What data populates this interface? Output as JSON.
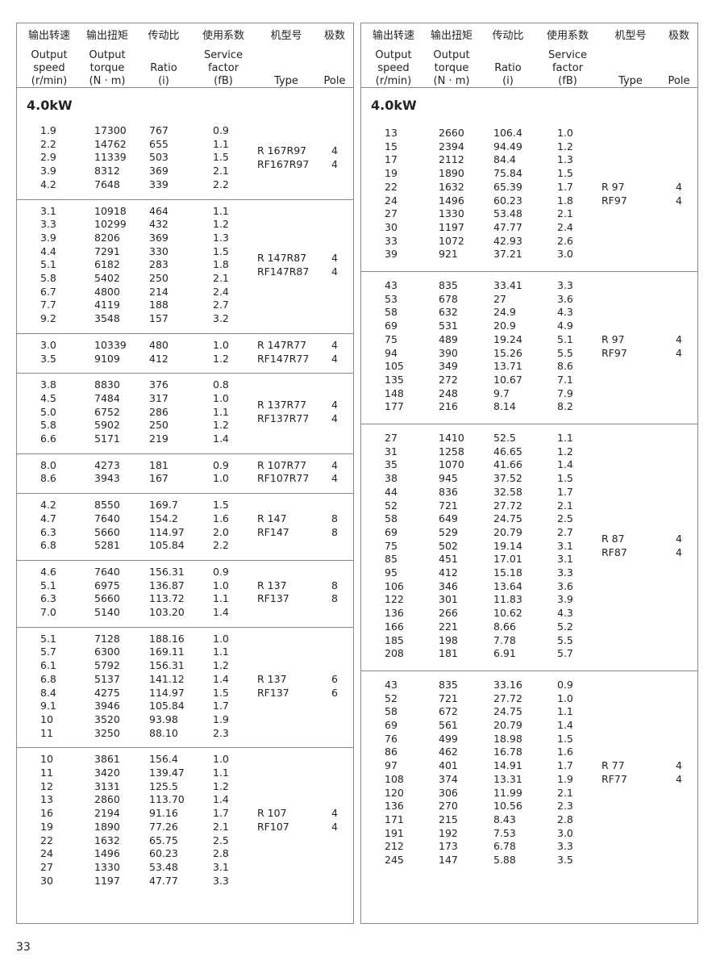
{
  "header": [
    {
      "cn": "输出转速",
      "en": [
        "Output",
        "speed",
        "(r/min)"
      ]
    },
    {
      "cn": "输出扭矩",
      "en": [
        "Output",
        "torque",
        "(N · m)"
      ]
    },
    {
      "cn": "传动比",
      "en": [
        "Ratio",
        "(i)"
      ]
    },
    {
      "cn": "使用系数",
      "en": [
        "Service",
        "factor",
        "(fB)"
      ]
    },
    {
      "cn": "机型号",
      "en": [
        "Type"
      ]
    },
    {
      "cn": "极数",
      "en": [
        "Pole"
      ]
    }
  ],
  "left": {
    "section_title": "4.0kW",
    "groups": [
      {
        "rows": [
          [
            "1.9",
            "17300",
            "767",
            "0.9"
          ],
          [
            "2.2",
            "14762",
            "655",
            "1.1"
          ],
          [
            "2.9",
            "11339",
            "503",
            "1.5"
          ],
          [
            "3.9",
            "8312",
            "369",
            "2.1"
          ],
          [
            "4.2",
            "7648",
            "339",
            "2.2"
          ]
        ],
        "types": [
          "R 167R97",
          "RF167R97"
        ],
        "poles": [
          "4",
          "4"
        ]
      },
      {
        "rows": [
          [
            "3.1",
            "10918",
            "464",
            "1.1"
          ],
          [
            "3.3",
            "10299",
            "432",
            "1.2"
          ],
          [
            "3.9",
            "8206",
            "369",
            "1.3"
          ],
          [
            "4.4",
            "7291",
            "330",
            "1.5"
          ],
          [
            "5.1",
            "6182",
            "283",
            "1.8"
          ],
          [
            "5.8",
            "5402",
            "250",
            "2.1"
          ],
          [
            "6.7",
            "4800",
            "214",
            "2.4"
          ],
          [
            "7.7",
            "4119",
            "188",
            "2.7"
          ],
          [
            "9.2",
            "3548",
            "157",
            "3.2"
          ]
        ],
        "types": [
          "R 147R87",
          "RF147R87"
        ],
        "poles": [
          "4",
          "4"
        ]
      },
      {
        "rows": [
          [
            "3.0",
            "10339",
            "480",
            "1.0"
          ],
          [
            "3.5",
            "9109",
            "412",
            "1.2"
          ]
        ],
        "types": [
          "R 147R77",
          "RF147R77"
        ],
        "poles": [
          "4",
          "4"
        ]
      },
      {
        "rows": [
          [
            "3.8",
            "8830",
            "376",
            "0.8"
          ],
          [
            "4.5",
            "7484",
            "317",
            "1.0"
          ],
          [
            "5.0",
            "6752",
            "286",
            "1.1"
          ],
          [
            "5.8",
            "5902",
            "250",
            "1.2"
          ],
          [
            "6.6",
            "5171",
            "219",
            "1.4"
          ]
        ],
        "types": [
          "R 137R77",
          "RF137R77"
        ],
        "poles": [
          "4",
          "4"
        ]
      },
      {
        "rows": [
          [
            "8.0",
            "4273",
            "181",
            "0.9"
          ],
          [
            "8.6",
            "3943",
            "167",
            "1.0"
          ]
        ],
        "types": [
          "R 107R77",
          "RF107R77"
        ],
        "poles": [
          "4",
          "4"
        ]
      },
      {
        "rows": [
          [
            "4.2",
            "8550",
            "169.7",
            "1.5"
          ],
          [
            "4.7",
            "7640",
            "154.2",
            "1.6"
          ],
          [
            "6.3",
            "5660",
            "114.97",
            "2.0"
          ],
          [
            "6.8",
            "5281",
            "105.84",
            "2.2"
          ]
        ],
        "types": [
          "R 147",
          "RF147"
        ],
        "poles": [
          "8",
          "8"
        ]
      },
      {
        "rows": [
          [
            "4.6",
            "7640",
            "156.31",
            "0.9"
          ],
          [
            "5.1",
            "6975",
            "136.87",
            "1.0"
          ],
          [
            "6.3",
            "5660",
            "113.72",
            "1.1"
          ],
          [
            "7.0",
            "5140",
            "103.20",
            "1.4"
          ]
        ],
        "types": [
          "R 137",
          "RF137"
        ],
        "poles": [
          "8",
          "8"
        ]
      },
      {
        "rows": [
          [
            "5.1",
            "7128",
            "188.16",
            "1.0"
          ],
          [
            "5.7",
            "6300",
            "169.11",
            "1.1"
          ],
          [
            "6.1",
            "5792",
            "156.31",
            "1.2"
          ],
          [
            "6.8",
            "5137",
            "141.12",
            "1.4"
          ],
          [
            "8.4",
            "4275",
            "114.97",
            "1.5"
          ],
          [
            "9.1",
            "3946",
            "105.84",
            "1.7"
          ],
          [
            "10",
            "3520",
            "93.98",
            "1.9"
          ],
          [
            "11",
            "3250",
            "88.10",
            "2.3"
          ]
        ],
        "types": [
          "R 137",
          "RF137"
        ],
        "poles": [
          "6",
          "6"
        ]
      },
      {
        "rows": [
          [
            "10",
            "3861",
            "156.4",
            "1.0"
          ],
          [
            "11",
            "3420",
            "139.47",
            "1.1"
          ],
          [
            "12",
            "3131",
            "125.5",
            "1.2"
          ],
          [
            "13",
            "2860",
            "113.70",
            "1.4"
          ],
          [
            "16",
            "2194",
            "91.16",
            "1.7"
          ],
          [
            "19",
            "1890",
            "77.26",
            "2.1"
          ],
          [
            "22",
            "1632",
            "65.75",
            "2.5"
          ],
          [
            "24",
            "1496",
            "60.23",
            "2.8"
          ],
          [
            "27",
            "1330",
            "53.48",
            "3.1"
          ],
          [
            "30",
            "1197",
            "47.77",
            "3.3"
          ]
        ],
        "types": [
          "R 107",
          "RF107"
        ],
        "poles": [
          "4",
          "4"
        ]
      }
    ]
  },
  "right": {
    "section_title": "4.0kW",
    "groups": [
      {
        "rows": [
          [
            "13",
            "2660",
            "106.4",
            "1.0"
          ],
          [
            "15",
            "2394",
            "94.49",
            "1.2"
          ],
          [
            "17",
            "2112",
            "84.4",
            "1.3"
          ],
          [
            "19",
            "1890",
            "75.84",
            "1.5"
          ],
          [
            "22",
            "1632",
            "65.39",
            "1.7"
          ],
          [
            "24",
            "1496",
            "60.23",
            "1.8"
          ],
          [
            "27",
            "1330",
            "53.48",
            "2.1"
          ],
          [
            "30",
            "1197",
            "47.77",
            "2.4"
          ],
          [
            "33",
            "1072",
            "42.93",
            "2.6"
          ],
          [
            "39",
            "921",
            "37.21",
            "3.0"
          ]
        ],
        "types": [
          "R 97",
          "RF97"
        ],
        "poles": [
          "4",
          "4"
        ]
      },
      {
        "rows": [
          [
            "43",
            "835",
            "33.41",
            "3.3"
          ],
          [
            "53",
            "678",
            "27",
            "3.6"
          ],
          [
            "58",
            "632",
            "24.9",
            "4.3"
          ],
          [
            "69",
            "531",
            "20.9",
            "4.9"
          ],
          [
            "75",
            "489",
            "19.24",
            "5.1"
          ],
          [
            "94",
            "390",
            "15.26",
            "5.5"
          ],
          [
            "105",
            "349",
            "13.71",
            "8.6"
          ],
          [
            "135",
            "272",
            "10.67",
            "7.1"
          ],
          [
            "148",
            "248",
            "9.7",
            "7.9"
          ],
          [
            "177",
            "216",
            "8.14",
            "8.2"
          ]
        ],
        "types": [
          "R 97",
          "RF97"
        ],
        "poles": [
          "4",
          "4"
        ]
      },
      {
        "rows": [
          [
            "27",
            "1410",
            "52.5",
            "1.1"
          ],
          [
            "31",
            "1258",
            "46.65",
            "1.2"
          ],
          [
            "35",
            "1070",
            "41.66",
            "1.4"
          ],
          [
            "38",
            "945",
            "37.52",
            "1.5"
          ],
          [
            "44",
            "836",
            "32.58",
            "1.7"
          ],
          [
            "52",
            "721",
            "27.72",
            "2.1"
          ],
          [
            "58",
            "649",
            "24.75",
            "2.5"
          ],
          [
            "69",
            "529",
            "20.79",
            "2.7"
          ],
          [
            "75",
            "502",
            "19.14",
            "3.1"
          ],
          [
            "85",
            "451",
            "17.01",
            "3.1"
          ],
          [
            "95",
            "412",
            "15.18",
            "3.3"
          ],
          [
            "106",
            "346",
            "13.64",
            "3.6"
          ],
          [
            "122",
            "301",
            "11.83",
            "3.9"
          ],
          [
            "136",
            "266",
            "10.62",
            "4.3"
          ],
          [
            "166",
            "221",
            "8.66",
            "5.2"
          ],
          [
            "185",
            "198",
            "7.78",
            "5.5"
          ],
          [
            "208",
            "181",
            "6.91",
            "5.7"
          ]
        ],
        "types": [
          "R 87",
          "RF87"
        ],
        "poles": [
          "4",
          "4"
        ]
      },
      {
        "rows": [
          [
            "43",
            "835",
            "33.16",
            "0.9"
          ],
          [
            "52",
            "721",
            "27.72",
            "1.0"
          ],
          [
            "58",
            "672",
            "24.75",
            "1.1"
          ],
          [
            "69",
            "561",
            "20.79",
            "1.4"
          ],
          [
            "76",
            "499",
            "18.98",
            "1.5"
          ],
          [
            "86",
            "462",
            "16.78",
            "1.6"
          ],
          [
            "97",
            "401",
            "14.91",
            "1.7"
          ],
          [
            "108",
            "374",
            "13.31",
            "1.9"
          ],
          [
            "120",
            "306",
            "11.99",
            "2.1"
          ],
          [
            "136",
            "270",
            "10.56",
            "2.3"
          ],
          [
            "171",
            "215",
            "8.43",
            "2.8"
          ],
          [
            "191",
            "192",
            "7.53",
            "3.0"
          ],
          [
            "212",
            "173",
            "6.78",
            "3.3"
          ],
          [
            "245",
            "147",
            "5.88",
            "3.5"
          ]
        ],
        "types": [
          "R 77",
          "RF77"
        ],
        "poles": [
          "4",
          "4"
        ]
      }
    ]
  },
  "page_number": "33"
}
